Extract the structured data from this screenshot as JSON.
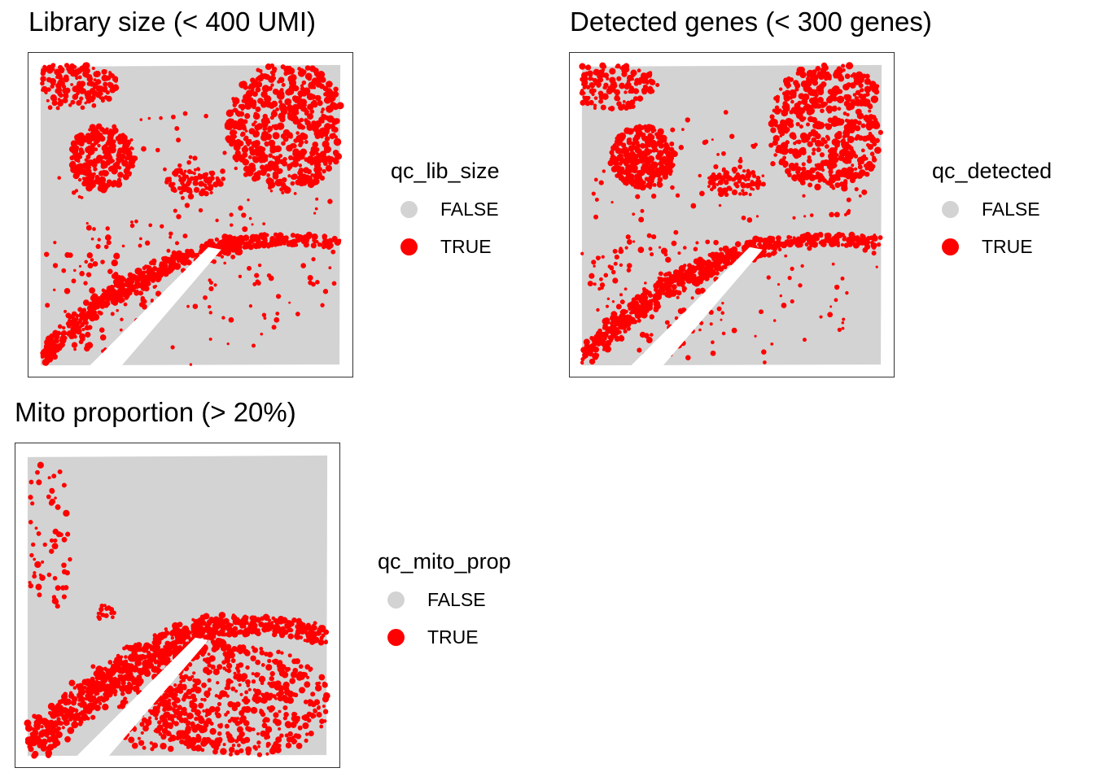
{
  "chart_data": [
    {
      "type": "scatter",
      "title": "Library size (< 400 UMI)",
      "legend": {
        "title": "qc_lib_size",
        "entries": [
          {
            "label": "FALSE",
            "color": "#d3d3d3"
          },
          {
            "label": "TRUE",
            "color": "#ff0000"
          }
        ],
        "position": "right"
      },
      "axes_visible": false,
      "grid": false
    },
    {
      "type": "scatter",
      "title": "Detected genes (< 300 genes)",
      "legend": {
        "title": "qc_detected",
        "entries": [
          {
            "label": "FALSE",
            "color": "#d3d3d3"
          },
          {
            "label": "TRUE",
            "color": "#ff0000"
          }
        ],
        "position": "right"
      },
      "axes_visible": false,
      "grid": false
    },
    {
      "type": "scatter",
      "title": "Mito proportion (> 20%)",
      "legend": {
        "title": "qc_mito_prop",
        "entries": [
          {
            "label": "FALSE",
            "color": "#d3d3d3"
          },
          {
            "label": "TRUE",
            "color": "#ff0000"
          }
        ],
        "position": "right"
      },
      "axes_visible": false,
      "grid": false
    }
  ]
}
